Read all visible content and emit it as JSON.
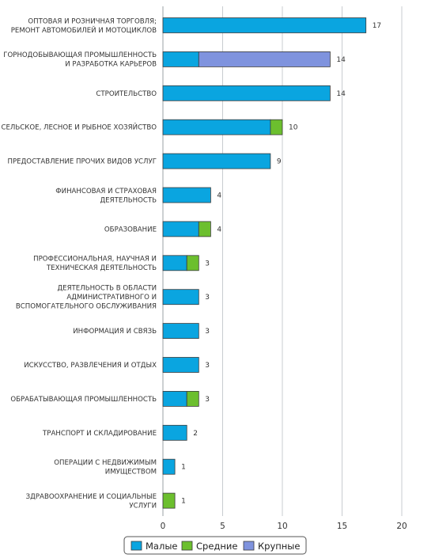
{
  "chart_data": {
    "type": "bar",
    "orientation": "horizontal",
    "stacked": true,
    "categories": [
      [
        "ОПТОВАЯ И РОЗНИЧНАЯ ТОРГОВЛЯ;",
        "РЕМОНТ АВТОМОБИЛЕЙ И МОТОЦИКЛОВ"
      ],
      [
        "ГОРНОДОБЫВАЮЩАЯ ПРОМЫШЛЕННОСТЬ",
        "И РАЗРАБОТКА КАРЬЕРОВ"
      ],
      [
        "СТРОИТЕЛЬСТВО"
      ],
      [
        "СЕЛЬСКОЕ, ЛЕСНОЕ И РЫБНОЕ ХОЗЯЙСТВО"
      ],
      [
        "ПРЕДОСТАВЛЕНИЕ ПРОЧИХ ВИДОВ УСЛУГ"
      ],
      [
        "ФИНАНСОВАЯ И СТРАХОВАЯ",
        "ДЕЯТЕЛЬНОСТЬ"
      ],
      [
        "ОБРАЗОВАНИЕ"
      ],
      [
        "ПРОФЕССИОНАЛЬНАЯ, НАУЧНАЯ И",
        "ТЕХНИЧЕСКАЯ ДЕЯТЕЛЬНОСТЬ"
      ],
      [
        "ДЕЯТЕЛЬНОСТЬ В ОБЛАСТИ",
        "АДМИНИСТРАТИВНОГО И",
        "ВСПОМОГАТЕЛЬНОГО ОБСЛУЖИВАНИЯ"
      ],
      [
        "ИНФОРМАЦИЯ И СВЯЗЬ"
      ],
      [
        "ИСКУССТВО, РАЗВЛЕЧЕНИЯ И ОТДЫХ"
      ],
      [
        "ОБРАБАТЫВАЮЩАЯ ПРОМЫШЛЕННОСТЬ"
      ],
      [
        "ТРАНСПОРТ И СКЛАДИРОВАНИЕ"
      ],
      [
        "ОПЕРАЦИИ С НЕДВИЖИМЫМ",
        "ИМУЩЕСТВОМ"
      ],
      [
        "ЗДРАВООХРАНЕНИЕ И СОЦИАЛЬНЫЕ",
        "УСЛУГИ"
      ]
    ],
    "series": [
      {
        "name": "Малые",
        "color": "#0aa5e0",
        "values": [
          17,
          3,
          14,
          9,
          9,
          4,
          3,
          2,
          3,
          3,
          3,
          2,
          2,
          1,
          0
        ]
      },
      {
        "name": "Средние",
        "color": "#6cbf2e",
        "values": [
          0,
          0,
          0,
          1,
          0,
          0,
          1,
          1,
          0,
          0,
          0,
          1,
          0,
          0,
          1
        ]
      },
      {
        "name": "Крупные",
        "color": "#7f93de",
        "values": [
          0,
          11,
          0,
          0,
          0,
          0,
          0,
          0,
          0,
          0,
          0,
          0,
          0,
          0,
          0
        ]
      }
    ],
    "totals": [
      17,
      14,
      14,
      10,
      9,
      4,
      4,
      3,
      3,
      3,
      3,
      3,
      2,
      1,
      1
    ],
    "xlim": [
      0,
      20
    ],
    "xticks": [
      0,
      5,
      10,
      15,
      20
    ],
    "grid": true,
    "legend_position": "bottom"
  }
}
